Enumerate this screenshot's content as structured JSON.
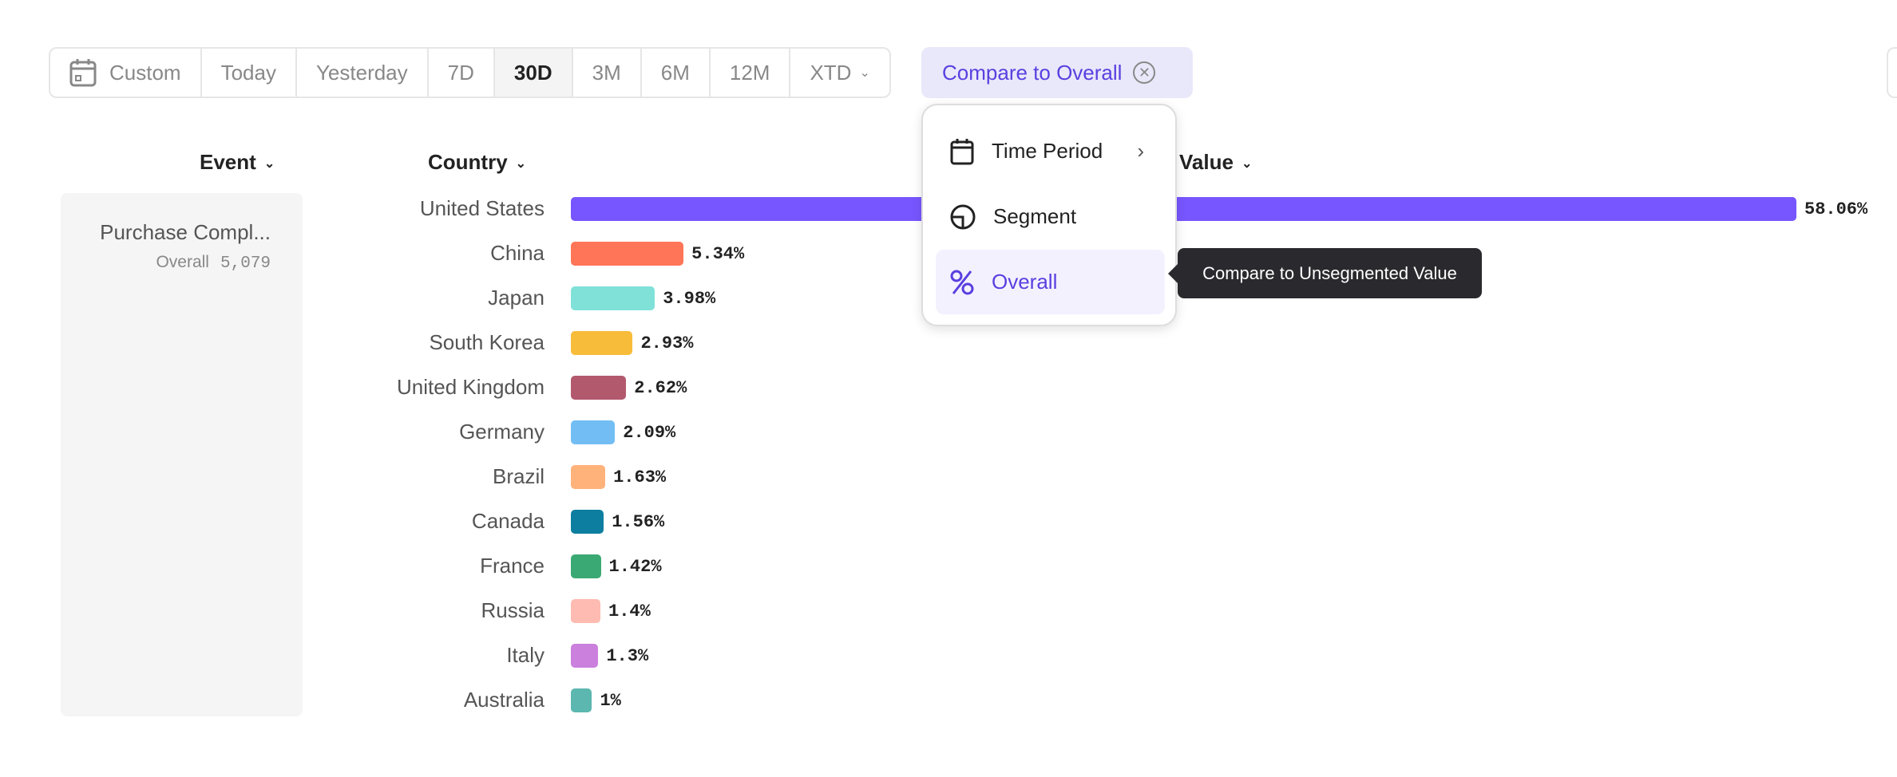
{
  "toolbar": {
    "items": [
      {
        "label": "Custom",
        "icon": "calendar-icon"
      },
      {
        "label": "Today"
      },
      {
        "label": "Yesterday"
      },
      {
        "label": "7D"
      },
      {
        "label": "30D",
        "active": true
      },
      {
        "label": "3M"
      },
      {
        "label": "6M"
      },
      {
        "label": "12M"
      },
      {
        "label": "XTD"
      }
    ]
  },
  "compare": {
    "label": "Compare to Overall",
    "accent": "#5a3fe0"
  },
  "headers": {
    "event": "Event",
    "country": "Country",
    "value": "Value"
  },
  "event_panel": {
    "name": "Purchase Compl...",
    "sub_label": "Overall",
    "sub_value": "5,079"
  },
  "menu": {
    "items": [
      {
        "label": "Time Period",
        "icon": "calendar-icon"
      },
      {
        "label": "Segment",
        "icon": "segment-icon"
      },
      {
        "label": "Overall",
        "icon": "percent-icon",
        "selected": true
      }
    ]
  },
  "tooltip": "Compare to Unsegmented Value",
  "chart_data": {
    "type": "bar",
    "orientation": "horizontal",
    "categories": [
      "United States",
      "China",
      "Japan",
      "South Korea",
      "United Kingdom",
      "Germany",
      "Brazil",
      "Canada",
      "France",
      "Russia",
      "Italy",
      "Australia"
    ],
    "values": [
      58.06,
      5.34,
      3.98,
      2.93,
      2.62,
      2.09,
      1.63,
      1.56,
      1.42,
      1.4,
      1.3,
      1
    ],
    "labels": [
      "58.06%",
      "5.34%",
      "3.98%",
      "2.93%",
      "2.62%",
      "2.09%",
      "1.63%",
      "1.56%",
      "1.42%",
      "1.4%",
      "1.3%",
      "1%"
    ],
    "colors": [
      "#7856FF",
      "#FF7557",
      "#80E1D9",
      "#F8BC3B",
      "#B2596E",
      "#72BEF4",
      "#FFB27A",
      "#0D7EA0",
      "#3BA974",
      "#FEBBB2",
      "#CA80DC",
      "#5BB7AF"
    ]
  }
}
